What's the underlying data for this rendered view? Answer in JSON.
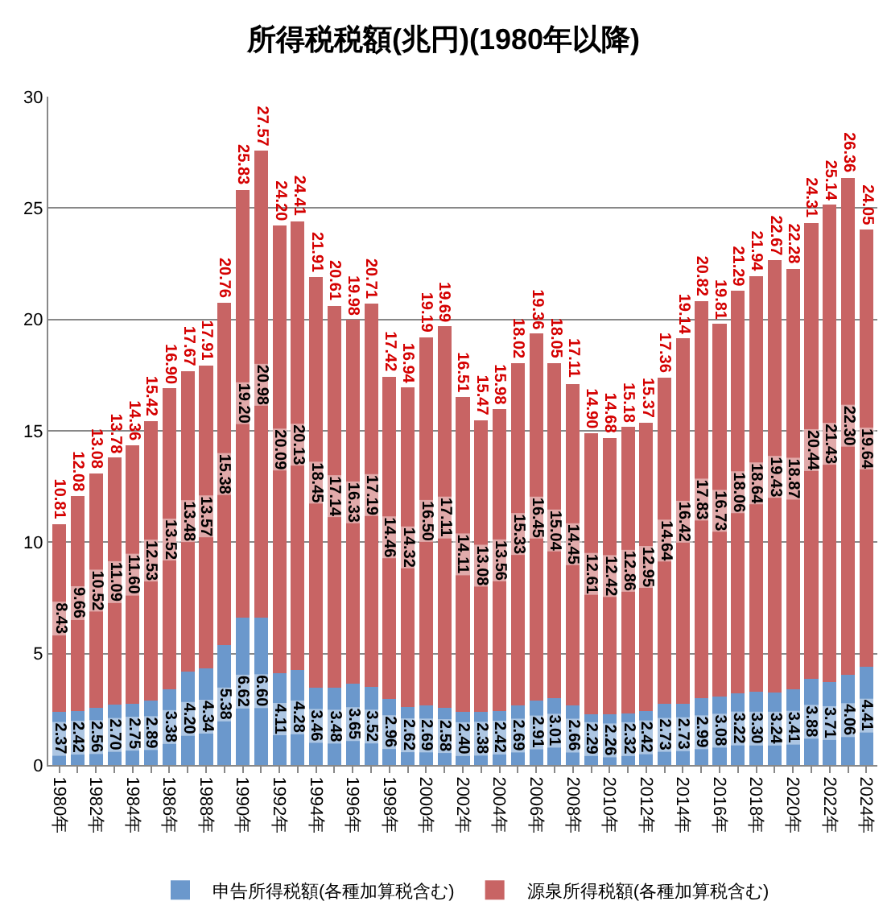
{
  "chart_data": {
    "type": "bar",
    "title": "所得税税額(兆円)(1980年以降)",
    "stacked": true,
    "categories": [
      "1980年",
      null,
      "1982年",
      null,
      "1984年",
      null,
      "1986年",
      null,
      "1988年",
      null,
      "1990年",
      null,
      "1992年",
      null,
      "1994年",
      null,
      "1996年",
      null,
      "1998年",
      null,
      "2000年",
      null,
      "2002年",
      null,
      "2004年",
      null,
      "2006年",
      null,
      "2008年",
      null,
      "2010年",
      null,
      "2012年",
      null,
      "2014年",
      null,
      "2016年",
      null,
      "2018年",
      null,
      "2020年",
      null,
      "2022年",
      null,
      "2024年"
    ],
    "series": [
      {
        "name": "申告所得税額(各種加算税含む)",
        "color": "#6b98cc",
        "values": [
          2.37,
          2.42,
          2.56,
          2.7,
          2.75,
          2.89,
          3.38,
          4.2,
          4.34,
          5.38,
          6.62,
          6.6,
          4.11,
          4.28,
          3.46,
          3.48,
          3.65,
          3.52,
          2.96,
          2.62,
          2.69,
          2.58,
          2.4,
          2.38,
          2.42,
          2.69,
          2.91,
          3.01,
          2.66,
          2.29,
          2.26,
          2.32,
          2.42,
          2.73,
          2.73,
          2.99,
          3.08,
          3.22,
          3.3,
          3.24,
          3.41,
          3.88,
          3.71,
          4.06,
          4.41
        ],
        "value_labels": [
          "2.37",
          "2.42",
          "2.56",
          "2.70",
          "2.75",
          "2.89",
          "3.38",
          "4.20",
          "4.34",
          "5.38",
          "6.62",
          "6.60",
          "4.11",
          "4.28",
          "3.46",
          "3.48",
          "3.65",
          "3.52",
          "2.96",
          "2.62",
          "2.69",
          "2.58",
          "2.40",
          "2.38",
          "2.42",
          "2.69",
          "2.91",
          "3.01",
          "2.66",
          "2.29",
          "2.26",
          "2.32",
          "2.42",
          "2.73",
          "2.73",
          "2.99",
          "3.08",
          "3.22",
          "3.30",
          "3.24",
          "3.41",
          "3.88",
          "3.71",
          "4.06",
          "4.41"
        ]
      },
      {
        "name": "源泉所得税額(各種加算税含む)",
        "color": "#c86464",
        "values": [
          8.43,
          9.66,
          10.52,
          11.09,
          11.6,
          12.53,
          13.52,
          13.48,
          13.57,
          15.38,
          19.2,
          20.98,
          20.09,
          20.13,
          18.45,
          17.14,
          16.33,
          17.19,
          14.46,
          14.32,
          16.5,
          17.11,
          14.11,
          13.08,
          13.56,
          15.33,
          16.45,
          15.04,
          14.45,
          12.61,
          12.42,
          12.86,
          12.95,
          14.64,
          16.42,
          17.83,
          16.73,
          18.06,
          18.64,
          19.43,
          18.87,
          20.44,
          21.43,
          22.3,
          19.64
        ],
        "value_labels": [
          "8.43",
          "9.66",
          "10.52",
          "11.09",
          "11.60",
          "12.53",
          "13.52",
          "13.48",
          "13.57",
          "15.38",
          "19.20",
          "20.98",
          "20.09",
          "20.13",
          "18.45",
          "17.14",
          "16.33",
          "17.19",
          "14.46",
          "14.32",
          "16.50",
          "17.11",
          "14.11",
          "13.08",
          "13.56",
          "15.33",
          "16.45",
          "15.04",
          "14.45",
          "12.61",
          "12.42",
          "12.86",
          "12.95",
          "14.64",
          "16.42",
          "17.83",
          "16.73",
          "18.06",
          "18.64",
          "19.43",
          "18.87",
          "20.44",
          "21.43",
          "22.30",
          "19.64"
        ]
      }
    ],
    "totals": [
      "10.81",
      "12.08",
      "13.08",
      "13.78",
      "14.36",
      "15.42",
      "16.90",
      "17.67",
      "17.91",
      "20.76",
      "25.83",
      "27.57",
      "24.20",
      "24.41",
      "21.91",
      "20.61",
      "19.98",
      "20.71",
      "17.42",
      "16.94",
      "19.19",
      "19.69",
      "16.51",
      "15.47",
      "15.98",
      "18.02",
      "19.36",
      "18.05",
      "17.11",
      "14.90",
      "14.68",
      "15.18",
      "15.37",
      "17.36",
      "19.14",
      "20.82",
      "19.81",
      "21.29",
      "21.94",
      "22.67",
      "22.28",
      "24.31",
      "25.14",
      "26.36",
      "24.05"
    ],
    "ylim": [
      0,
      30
    ],
    "yticks": [
      0,
      5,
      10,
      15,
      20,
      25,
      30
    ],
    "grid": "y",
    "legend": "bottom"
  }
}
